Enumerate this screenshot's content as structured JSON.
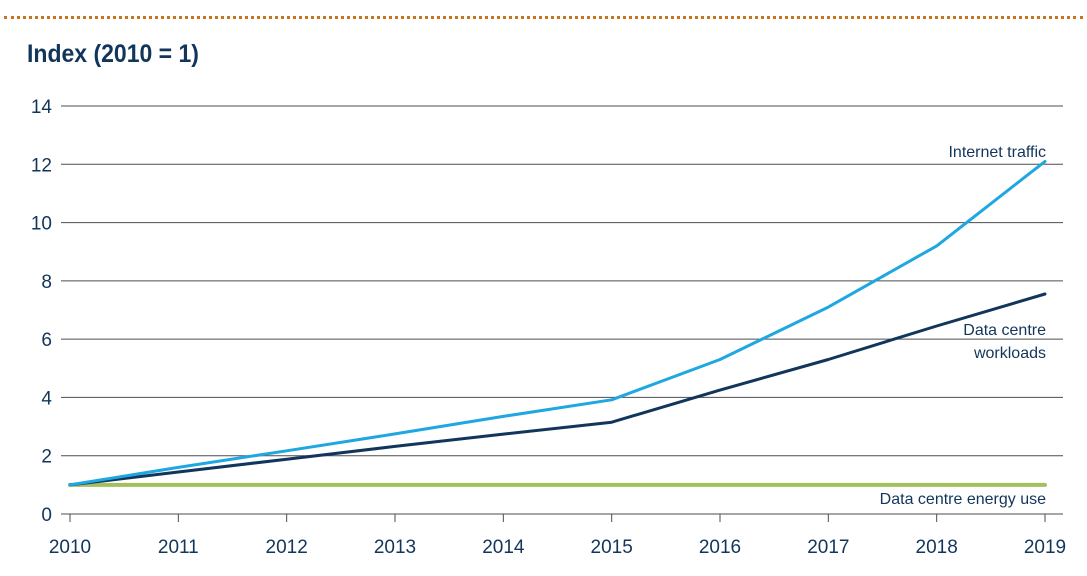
{
  "chart_data": {
    "type": "line",
    "title": "Index (2010 = 1)",
    "x": [
      2010,
      2011,
      2012,
      2013,
      2014,
      2015,
      2016,
      2017,
      2018,
      2019
    ],
    "ylim": [
      0,
      14
    ],
    "yticks": [
      0,
      2,
      4,
      6,
      8,
      10,
      12,
      14
    ],
    "grid": true,
    "series": [
      {
        "name": "Internet traffic",
        "color": "#1ea7e1",
        "values": [
          1.0,
          1.6,
          2.17,
          2.75,
          3.35,
          3.92,
          5.3,
          7.1,
          9.2,
          12.1
        ]
      },
      {
        "name": "Data centre workloads",
        "color": "#12355b",
        "values": [
          1.0,
          1.44,
          1.88,
          2.32,
          2.74,
          3.15,
          4.25,
          5.3,
          6.45,
          7.55
        ]
      },
      {
        "name": "Data centre energy use",
        "color": "#a3bf5e",
        "values": [
          1.0,
          1.0,
          1.0,
          1.0,
          1.0,
          1.0,
          1.0,
          1.0,
          1.0,
          1.0
        ]
      }
    ],
    "series_labels": {
      "internet_traffic": "Internet traffic",
      "workloads_line1": "Data centre",
      "workloads_line2": "workloads",
      "energy_use": "Data centre energy use"
    },
    "gridline_color": "#4d4d4d",
    "text_color": "#12355b",
    "accent_color": "#c8741e"
  }
}
